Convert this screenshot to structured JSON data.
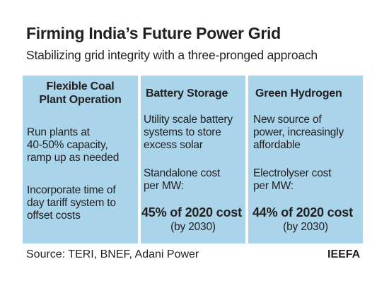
{
  "title": "Firming India’s Future Power Grid",
  "subtitle": "Stabilizing grid integrity with a three-pronged approach",
  "columns": [
    {
      "heading_line1": "Flexible Coal",
      "heading_line2": "Plant Operation",
      "para1_line1": "Run plants at",
      "para1_line2": "40-50% capacity,",
      "para1_line3": "ramp up as needed",
      "para2_line1": "Incorporate time of",
      "para2_line2": "day tariff system to",
      "para2_line3": "offset costs"
    },
    {
      "heading": "Battery Storage",
      "desc_line1": "Utility scale battery",
      "desc_line2": "systems to store",
      "desc_line3": "excess solar",
      "cost_label_line1": "Standalone cost",
      "cost_label_line2": "per MW:",
      "cost_value": "45% of 2020 cost",
      "cost_note": "(by 2030)"
    },
    {
      "heading": "Green Hydrogen",
      "desc_line1": "New source of",
      "desc_line2": "power, increasingly",
      "desc_line3": "affordable",
      "cost_label_line1": "Electrolyser cost",
      "cost_label_line2": "per MW:",
      "cost_value": "44% of 2020 cost",
      "cost_note": "(by 2030)"
    }
  ],
  "source": "Source: TERI, BNEF, Adani Power",
  "brand": "IEEFA",
  "colors": {
    "panel": "#a9d4e9",
    "text": "#231f20",
    "background": "#ffffff"
  }
}
